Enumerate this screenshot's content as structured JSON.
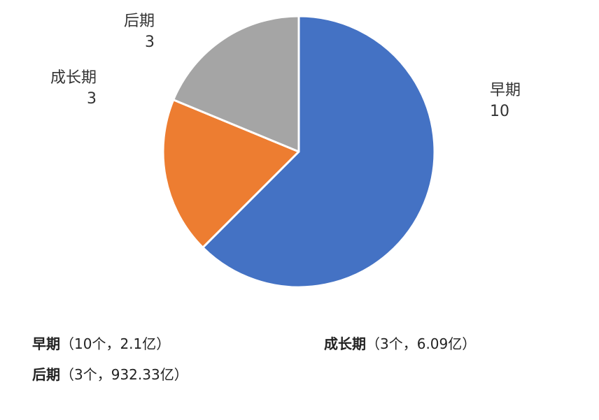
{
  "chart_data": {
    "type": "pie",
    "slices": [
      {
        "name": "早期",
        "value": 10,
        "color": "#4472C4"
      },
      {
        "name": "成长期",
        "value": 3,
        "color": "#ED7D31"
      },
      {
        "name": "后期",
        "value": 3,
        "color": "#A5A5A5"
      }
    ],
    "data_labels": [
      {
        "name": "早期",
        "value": "10"
      },
      {
        "name": "成长期",
        "value": "3"
      },
      {
        "name": "后期",
        "value": "3"
      }
    ],
    "legend": [
      {
        "name": "早期",
        "detail": "（10个，2.1亿）"
      },
      {
        "name": "成长期",
        "detail": "（3个，6.09亿）"
      },
      {
        "name": "后期",
        "detail": "（3个，932.33亿）"
      }
    ]
  }
}
